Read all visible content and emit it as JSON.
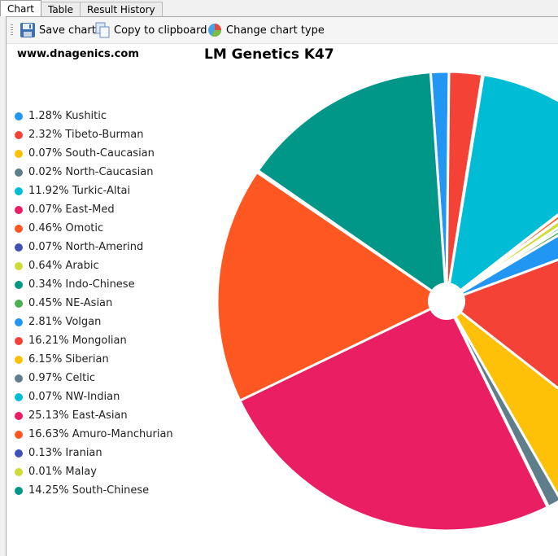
{
  "tabs": [
    "Chart",
    "Table",
    "Result History"
  ],
  "toolbar": {
    "save_label": "Save chart",
    "copy_label": "Copy to clipboard",
    "change_label": "Change chart type"
  },
  "site": "www.dnagenics.com",
  "chart_data": {
    "type": "pie",
    "title": "LM Genetics K47",
    "legend_position": "left",
    "items": [
      {
        "label": "1.28% Kushitic",
        "value": 1.28,
        "color": "#2196f3"
      },
      {
        "label": "2.32% Tibeto-Burman",
        "value": 2.32,
        "color": "#f44336"
      },
      {
        "label": "0.07% South-Caucasian",
        "value": 0.07,
        "color": "#ffc107"
      },
      {
        "label": "0.02% North-Caucasian",
        "value": 0.02,
        "color": "#607d8b"
      },
      {
        "label": "11.92% Turkic-Altai",
        "value": 11.92,
        "color": "#00bcd4"
      },
      {
        "label": "0.07% East-Med",
        "value": 0.07,
        "color": "#e91e63"
      },
      {
        "label": "0.46% Omotic",
        "value": 0.46,
        "color": "#ff5722"
      },
      {
        "label": "0.07% North-Amerind",
        "value": 0.07,
        "color": "#3f51b5"
      },
      {
        "label": "0.64% Arabic",
        "value": 0.64,
        "color": "#cddc39"
      },
      {
        "label": "0.34% Indo-Chinese",
        "value": 0.34,
        "color": "#009688"
      },
      {
        "label": "0.45% NE-Asian",
        "value": 0.45,
        "color": "#4caf50"
      },
      {
        "label": "2.81% Volgan",
        "value": 2.81,
        "color": "#2196f3"
      },
      {
        "label": "16.21% Mongolian",
        "value": 16.21,
        "color": "#f44336"
      },
      {
        "label": "6.15% Siberian",
        "value": 6.15,
        "color": "#ffc107"
      },
      {
        "label": "0.97% Celtic",
        "value": 0.97,
        "color": "#607d8b"
      },
      {
        "label": "0.07% NW-Indian",
        "value": 0.07,
        "color": "#00bcd4"
      },
      {
        "label": "25.13% East-Asian",
        "value": 25.13,
        "color": "#e91e63"
      },
      {
        "label": "16.63% Amuro-Manchurian",
        "value": 16.63,
        "color": "#ff5722"
      },
      {
        "label": "0.13% Iranian",
        "value": 0.13,
        "color": "#3f51b5"
      },
      {
        "label": "0.01% Malay",
        "value": 0.01,
        "color": "#cddc39"
      },
      {
        "label": "14.25% South-Chinese",
        "value": 14.25,
        "color": "#009688"
      }
    ]
  }
}
